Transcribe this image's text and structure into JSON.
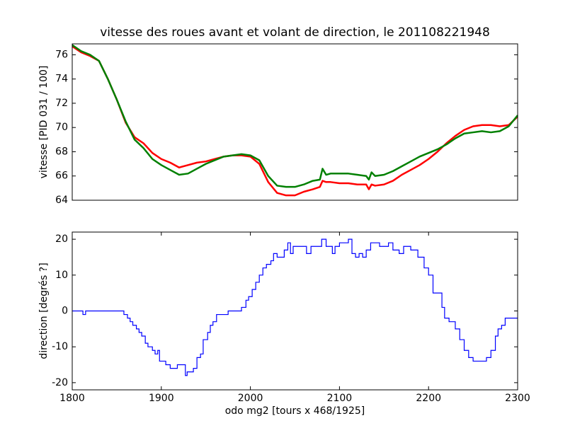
{
  "chart_data": [
    {
      "type": "line",
      "title": "vitesse des roues avant et volant de direction, le 201108221948",
      "y_label": "vitesse [PID 031 / 100]",
      "x": [
        1800,
        1810,
        1820,
        1830,
        1840,
        1850,
        1860,
        1870,
        1880,
        1890,
        1900,
        1910,
        1920,
        1930,
        1940,
        1950,
        1960,
        1970,
        1980,
        1990,
        2000,
        2010,
        2020,
        2030,
        2040,
        2050,
        2060,
        2070,
        2078,
        2081,
        2085,
        2090,
        2100,
        2110,
        2120,
        2130,
        2133,
        2136,
        2140,
        2150,
        2160,
        2170,
        2180,
        2190,
        2200,
        2210,
        2220,
        2230,
        2240,
        2250,
        2260,
        2270,
        2280,
        2290,
        2300
      ],
      "series": [
        {
          "color": "#ff0000",
          "values": [
            76.7,
            76.2,
            75.9,
            75.5,
            74.0,
            72.3,
            70.4,
            69.2,
            68.7,
            67.9,
            67.4,
            67.1,
            66.7,
            66.9,
            67.1,
            67.2,
            67.4,
            67.6,
            67.7,
            67.7,
            67.6,
            67.0,
            65.5,
            64.6,
            64.4,
            64.4,
            64.7,
            64.9,
            65.1,
            65.6,
            65.5,
            65.5,
            65.4,
            65.4,
            65.3,
            65.3,
            64.9,
            65.3,
            65.2,
            65.3,
            65.6,
            66.1,
            66.5,
            66.9,
            67.4,
            68.0,
            68.7,
            69.3,
            69.8,
            70.1,
            70.2,
            70.2,
            70.1,
            70.2,
            70.9
          ]
        },
        {
          "color": "#008000",
          "values": [
            76.8,
            76.3,
            76.0,
            75.5,
            74.0,
            72.3,
            70.5,
            69.0,
            68.3,
            67.4,
            66.9,
            66.5,
            66.1,
            66.2,
            66.6,
            67.0,
            67.3,
            67.6,
            67.7,
            67.8,
            67.7,
            67.3,
            66.0,
            65.2,
            65.1,
            65.1,
            65.3,
            65.6,
            65.7,
            66.6,
            66.1,
            66.2,
            66.2,
            66.2,
            66.1,
            66.0,
            65.7,
            66.3,
            66.0,
            66.1,
            66.4,
            66.8,
            67.2,
            67.6,
            67.9,
            68.2,
            68.6,
            69.1,
            69.5,
            69.6,
            69.7,
            69.6,
            69.7,
            70.1,
            71.0
          ]
        }
      ],
      "xlim": [
        1800,
        2300
      ],
      "ylim": [
        64,
        76.9
      ],
      "yticks": [
        64,
        66,
        68,
        70,
        72,
        74,
        76
      ]
    },
    {
      "type": "step",
      "y_label": "direction [degrés ?]",
      "x_label": "odo mg2 [tours x 468/1925]",
      "x": [
        1800,
        1812,
        1815,
        1858,
        1862,
        1865,
        1868,
        1872,
        1875,
        1878,
        1882,
        1885,
        1890,
        1893,
        1896,
        1898,
        1905,
        1910,
        1918,
        1927,
        1929,
        1936,
        1940,
        1944,
        1947,
        1952,
        1955,
        1958,
        1962,
        1975,
        1990,
        1995,
        1998,
        2002,
        2006,
        2010,
        2014,
        2018,
        2023,
        2026,
        2030,
        2038,
        2042,
        2045,
        2048,
        2063,
        2068,
        2080,
        2085,
        2092,
        2095,
        2100,
        2110,
        2114,
        2118,
        2122,
        2126,
        2130,
        2135,
        2145,
        2155,
        2160,
        2167,
        2172,
        2180,
        2188,
        2195,
        2200,
        2205,
        2215,
        2218,
        2223,
        2230,
        2235,
        2240,
        2245,
        2250,
        2265,
        2270,
        2275,
        2278,
        2282,
        2286,
        2300
      ],
      "values": [
        0,
        -1,
        0,
        -1,
        -2,
        -3,
        -4,
        -5,
        -6,
        -7,
        -9,
        -10,
        -11,
        -12,
        -11,
        -14,
        -15,
        -16,
        -15,
        -18,
        -17,
        -16,
        -13,
        -12,
        -8,
        -6,
        -4,
        -3,
        -1,
        0,
        1,
        3,
        4,
        6,
        8,
        10,
        12,
        13,
        14,
        16,
        15,
        17,
        19,
        16,
        18,
        16,
        18,
        20,
        18,
        16,
        18,
        19,
        20,
        16,
        15,
        16,
        15,
        17,
        19,
        18,
        19,
        17,
        16,
        18,
        17,
        15,
        12,
        10,
        5,
        1,
        -2,
        -3,
        -5,
        -8,
        -11,
        -13,
        -14,
        -13,
        -11,
        -7,
        -5,
        -4,
        -2,
        -2
      ],
      "color": "#0000ff",
      "xlim": [
        1800,
        2300
      ],
      "ylim": [
        -22,
        22
      ],
      "xticks": [
        1800,
        1900,
        2000,
        2100,
        2200,
        2300
      ],
      "yticks": [
        -20,
        -10,
        0,
        10,
        20
      ]
    }
  ]
}
